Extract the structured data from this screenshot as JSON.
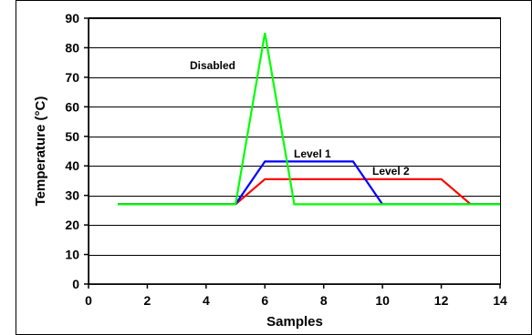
{
  "chart_data": {
    "type": "line",
    "xlabel": "Samples",
    "ylabel": "Temperature (°C)",
    "xlim": [
      0,
      14
    ],
    "ylim": [
      0,
      90
    ],
    "xticks": [
      0,
      2,
      4,
      6,
      8,
      10,
      12,
      14
    ],
    "yticks": [
      0,
      10,
      20,
      30,
      40,
      50,
      60,
      70,
      80,
      90
    ],
    "grid": "horizontal",
    "legend": "none",
    "series": [
      {
        "name": "Disabled",
        "color": "#00ff00",
        "points": [
          [
            1,
            27
          ],
          [
            5,
            27
          ],
          [
            6,
            85
          ],
          [
            7,
            27
          ],
          [
            14,
            27
          ]
        ]
      },
      {
        "name": "Level 1",
        "color": "#0000ff",
        "points": [
          [
            1,
            27
          ],
          [
            5,
            27
          ],
          [
            6,
            41.5
          ],
          [
            9,
            41.5
          ],
          [
            10,
            27
          ],
          [
            14,
            27
          ]
        ]
      },
      {
        "name": "Level 2",
        "color": "#ff0000",
        "points": [
          [
            1,
            27
          ],
          [
            5,
            27
          ],
          [
            6,
            35.5
          ],
          [
            12,
            35.5
          ],
          [
            13,
            27
          ],
          [
            14,
            27
          ]
        ]
      }
    ]
  }
}
